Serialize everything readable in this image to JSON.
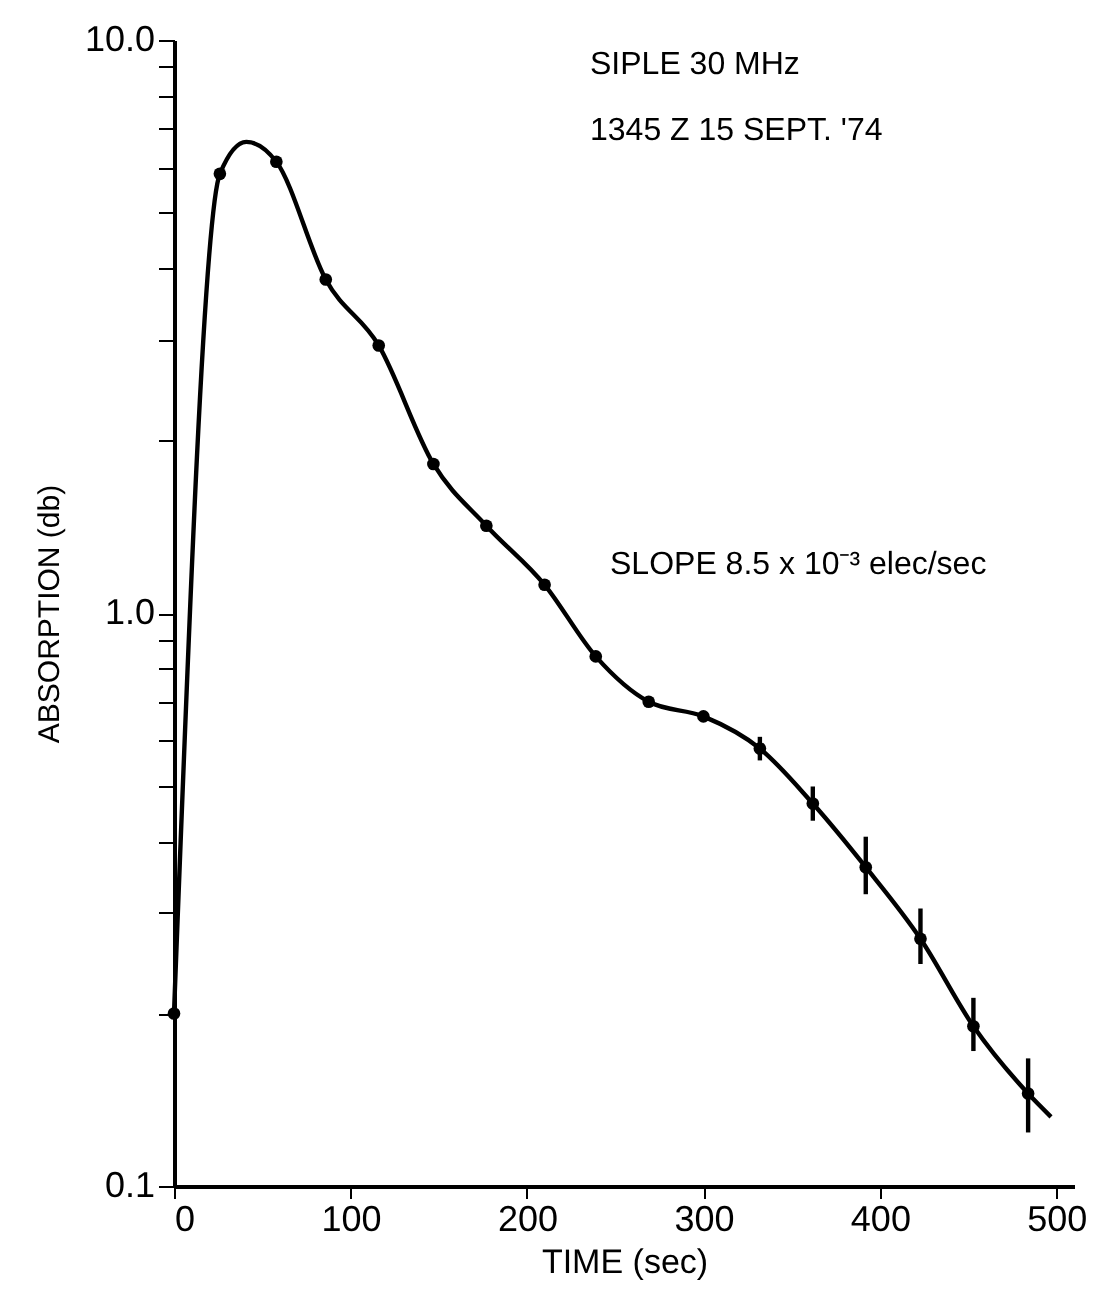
{
  "chart_data": {
    "type": "line",
    "xlabel": "TIME (sec)",
    "ylabel": "ABSORPTION (db)",
    "annotations": [
      "SIPLE 30 MHz",
      "1345 Z 15 SEPT. '74",
      "SLOPE 8.5 x 10⁻³ elec/sec"
    ],
    "log": "y",
    "grid": false,
    "xlim": [
      0,
      510
    ],
    "xticks": [
      0,
      100,
      200,
      300,
      400,
      500
    ],
    "ylim": [
      0.1,
      10
    ],
    "yticks": [
      {
        "value": 0.1,
        "label": "0.1"
      },
      {
        "value": 0.2,
        "label": null
      },
      {
        "value": 0.3,
        "label": null
      },
      {
        "value": 0.4,
        "label": null
      },
      {
        "value": 0.5,
        "label": null
      },
      {
        "value": 0.6,
        "label": null
      },
      {
        "value": 0.7,
        "label": null
      },
      {
        "value": 0.8,
        "label": null
      },
      {
        "value": 0.9,
        "label": null
      },
      {
        "value": 1,
        "label": "1.0"
      },
      {
        "value": 2,
        "label": null
      },
      {
        "value": 3,
        "label": null
      },
      {
        "value": 4,
        "label": null
      },
      {
        "value": 5,
        "label": null
      },
      {
        "value": 6,
        "label": null
      },
      {
        "value": 7,
        "label": null
      },
      {
        "value": 8,
        "label": null
      },
      {
        "value": 9,
        "label": null
      },
      {
        "value": 10,
        "label": "10.0"
      }
    ],
    "series": [
      {
        "type": "line",
        "color": "#000000",
        "marker": "none",
        "line_style": "solid",
        "x": [
          0,
          26,
          41,
          58,
          86,
          116,
          147,
          177,
          210,
          239,
          269,
          300,
          332,
          362,
          392,
          423,
          453,
          484,
          497
        ],
        "values": [
          0.2,
          5.84,
          6.64,
          6.13,
          3.82,
          2.93,
          1.82,
          1.42,
          1.12,
          0.84,
          0.7,
          0.66,
          0.58,
          0.465,
          0.36,
          0.27,
          0.19,
          0.145,
          0.132
        ]
      },
      {
        "type": "scatter",
        "color": "#000000",
        "marker": "circle",
        "x": [
          0,
          26,
          58,
          86,
          116,
          147,
          177,
          210,
          239,
          269,
          300,
          332,
          362,
          392,
          423,
          453,
          484
        ],
        "values": [
          0.2,
          5.84,
          6.13,
          3.82,
          2.93,
          1.82,
          1.42,
          1.12,
          0.84,
          0.7,
          0.66,
          0.58,
          0.465,
          0.36,
          0.27,
          0.19,
          0.145
        ],
        "errors": [
          null,
          null,
          null,
          null,
          null,
          null,
          null,
          null,
          null,
          null,
          null,
          [
            0.553,
            0.608
          ],
          [
            0.434,
            0.498
          ],
          [
            0.323,
            0.407
          ],
          [
            0.244,
            0.305
          ],
          [
            0.172,
            0.213
          ],
          [
            0.124,
            0.167
          ]
        ]
      }
    ]
  }
}
